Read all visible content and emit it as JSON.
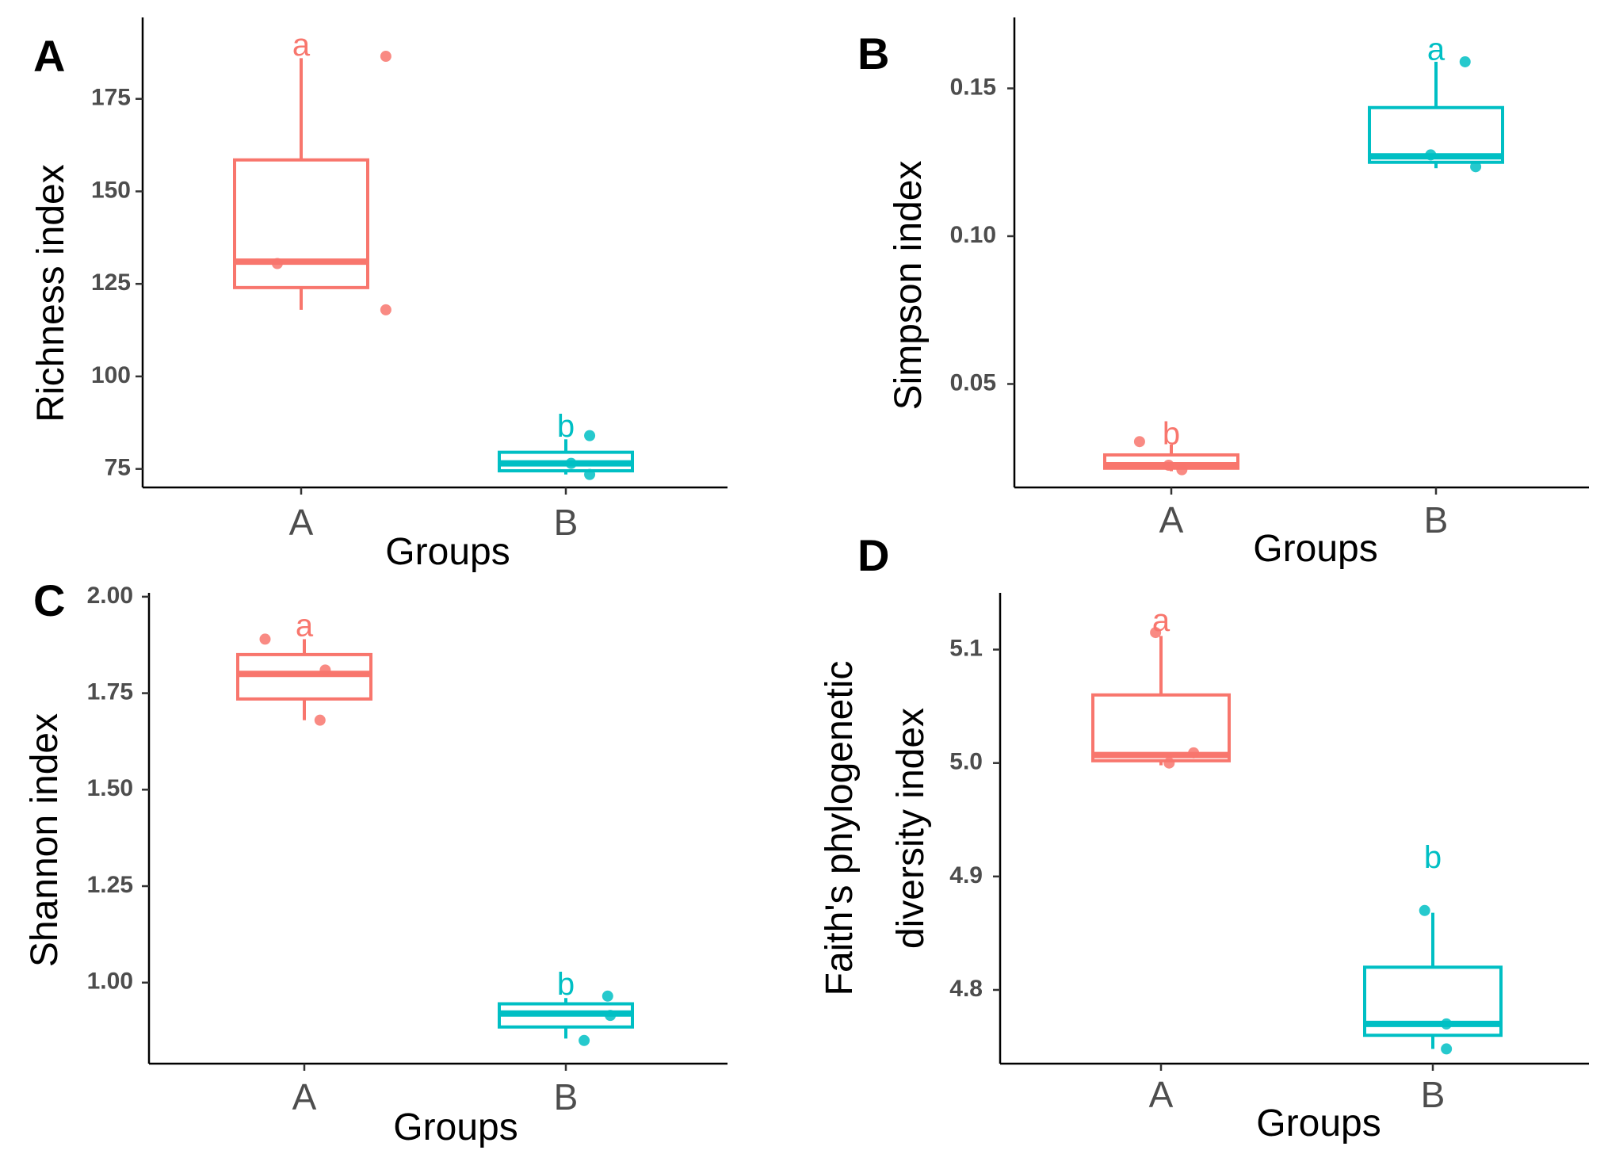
{
  "colors": {
    "A": "#F8766D",
    "B": "#00BFC4"
  },
  "chart_data": [
    {
      "id": "A",
      "type": "boxplot",
      "panel_label": "A",
      "xlabel": "Groups",
      "ylabel": "Richness index",
      "categories": [
        "A",
        "B"
      ],
      "yticks": [
        75,
        100,
        125,
        150,
        175
      ],
      "ytick_labels": [
        "75",
        "100",
        "125",
        "150",
        "175"
      ],
      "ylim": [
        70,
        197
      ],
      "boxes": [
        {
          "group": "A",
          "q1": 124,
          "median": 131,
          "q3": 158.5,
          "whisker_low": 118,
          "whisker_high": 186,
          "letter": "a",
          "letter_y": 189
        },
        {
          "group": "B",
          "q1": 74.5,
          "median": 76.5,
          "q3": 79.5,
          "whisker_low": 73.5,
          "whisker_high": 83,
          "letter": "b",
          "letter_y": 86
        }
      ],
      "points": [
        {
          "group": "A",
          "offset": 0.32,
          "value": 186.5
        },
        {
          "group": "A",
          "offset": -0.09,
          "value": 130.5
        },
        {
          "group": "A",
          "offset": 0.32,
          "value": 118
        },
        {
          "group": "B",
          "offset": 0.09,
          "value": 84
        },
        {
          "group": "B",
          "offset": 0.02,
          "value": 76.5
        },
        {
          "group": "B",
          "offset": 0.09,
          "value": 73.5
        }
      ]
    },
    {
      "id": "B",
      "type": "boxplot",
      "panel_label": "B",
      "xlabel": "Groups",
      "ylabel": "Simpson index",
      "categories": [
        "A",
        "B"
      ],
      "yticks": [
        0.05,
        0.1,
        0.15
      ],
      "ytick_labels": [
        "0.05",
        "0.10",
        "0.15"
      ],
      "ylim": [
        0.015,
        0.174
      ],
      "boxes": [
        {
          "group": "A",
          "q1": 0.0215,
          "median": 0.0225,
          "q3": 0.026,
          "whisker_low": 0.0205,
          "whisker_high": 0.0295,
          "letter": "b",
          "letter_y": 0.0325
        },
        {
          "group": "B",
          "q1": 0.125,
          "median": 0.127,
          "q3": 0.1435,
          "whisker_low": 0.123,
          "whisker_high": 0.159,
          "letter": "a",
          "letter_y": 0.1625
        }
      ],
      "points": [
        {
          "group": "A",
          "offset": -0.12,
          "value": 0.0305
        },
        {
          "group": "A",
          "offset": -0.01,
          "value": 0.0225
        },
        {
          "group": "A",
          "offset": 0.04,
          "value": 0.021
        },
        {
          "group": "B",
          "offset": 0.11,
          "value": 0.159
        },
        {
          "group": "B",
          "offset": -0.02,
          "value": 0.1275
        },
        {
          "group": "B",
          "offset": 0.15,
          "value": 0.1235
        }
      ]
    },
    {
      "id": "C",
      "type": "boxplot",
      "panel_label": "C",
      "xlabel": "Groups",
      "ylabel": "Shannon index",
      "categories": [
        "A",
        "B"
      ],
      "yticks": [
        1.0,
        1.25,
        1.5,
        1.75,
        2.0
      ],
      "ytick_labels": [
        "1.00",
        "1.25",
        "1.50",
        "1.75",
        "2.00"
      ],
      "ylim": [
        0.79,
        2.01
      ],
      "boxes": [
        {
          "group": "A",
          "q1": 1.735,
          "median": 1.8,
          "q3": 1.85,
          "whisker_low": 1.68,
          "whisker_high": 1.89,
          "letter": "a",
          "letter_y": 1.92
        },
        {
          "group": "B",
          "q1": 0.885,
          "median": 0.92,
          "q3": 0.945,
          "whisker_low": 0.855,
          "whisker_high": 0.96,
          "letter": "b",
          "letter_y": 0.99
        }
      ],
      "points": [
        {
          "group": "A",
          "offset": -0.15,
          "value": 1.89
        },
        {
          "group": "A",
          "offset": 0.08,
          "value": 1.81
        },
        {
          "group": "A",
          "offset": 0.06,
          "value": 1.68
        },
        {
          "group": "B",
          "offset": 0.16,
          "value": 0.965
        },
        {
          "group": "B",
          "offset": 0.17,
          "value": 0.915
        },
        {
          "group": "B",
          "offset": 0.07,
          "value": 0.85
        }
      ]
    },
    {
      "id": "D",
      "type": "boxplot",
      "panel_label": "D",
      "xlabel": "Groups",
      "ylabel_lines": [
        "Faith's phylogenetic",
        "diversity index"
      ],
      "categories": [
        "A",
        "B"
      ],
      "yticks": [
        4.8,
        4.9,
        5.0,
        5.1
      ],
      "ytick_labels": [
        "4.8",
        "4.9",
        "5.0",
        "5.1"
      ],
      "ylim": [
        4.735,
        5.15
      ],
      "boxes": [
        {
          "group": "A",
          "q1": 5.002,
          "median": 5.007,
          "q3": 5.06,
          "whisker_low": 4.998,
          "whisker_high": 5.112,
          "letter": "a",
          "letter_y": 5.124
        },
        {
          "group": "B",
          "q1": 4.76,
          "median": 4.77,
          "q3": 4.82,
          "whisker_low": 4.748,
          "whisker_high": 4.868,
          "letter": "b",
          "letter_y": 4.915
        }
      ],
      "points": [
        {
          "group": "A",
          "offset": -0.02,
          "value": 5.115
        },
        {
          "group": "A",
          "offset": 0.12,
          "value": 5.009
        },
        {
          "group": "A",
          "offset": 0.03,
          "value": 5.0
        },
        {
          "group": "B",
          "offset": -0.03,
          "value": 4.87
        },
        {
          "group": "B",
          "offset": 0.05,
          "value": 4.77
        },
        {
          "group": "B",
          "offset": 0.05,
          "value": 4.748
        }
      ]
    }
  ]
}
